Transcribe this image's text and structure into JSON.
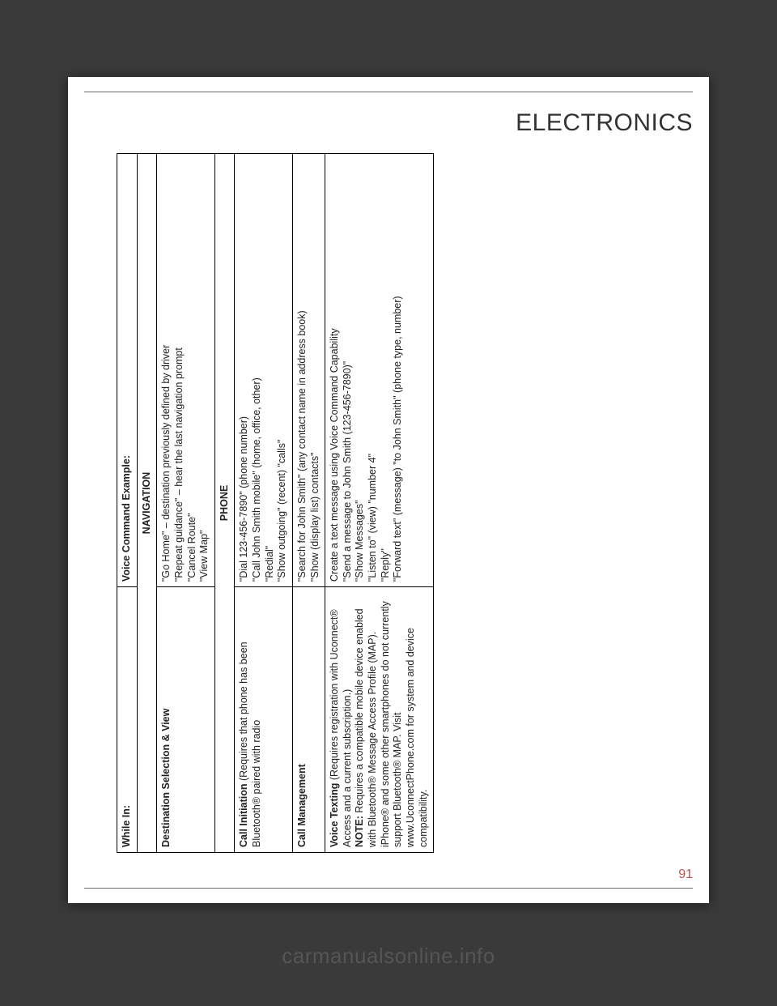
{
  "header": {
    "title": "ELECTRONICS"
  },
  "pageNumber": "91",
  "watermark": "carmanualsonline.info",
  "table": {
    "header": {
      "whileIn": "While In:",
      "example": "Voice Command Example:"
    },
    "sections": {
      "navigation": {
        "title": "NAVIGATION",
        "row": {
          "label": "Destination Selection & View",
          "lines": {
            "l1": "\"Go Home\" – destination previously defined by driver",
            "l2": "\"Repeat guidance\" – hear the last navigation prompt",
            "l3": "\"Cancel Route\"",
            "l4": "\"View Map\""
          }
        }
      },
      "phone": {
        "title": "PHONE",
        "callInitLabelBold": "Call Initiation",
        "callInitLabelRest": " (Requires that phone has been Bluetooth® paired with radio",
        "callInit": {
          "l1": "\"Dial 123-456-7890\" (phone number)",
          "l2": "\"Call John Smith mobile\" (home, office, other)",
          "l3": "\"Redial\"",
          "l4": "\"Show outgoing\" (recent) \"calls\""
        },
        "callMgmtLabel": "Call Management",
        "callMgmt": {
          "l1": "\"Search for John Smith\" (any contact name in address book)",
          "l2": "\"Show (display list) contacts\""
        },
        "voiceTextLabelBold": "Voice Texting",
        "voiceTextLabelRest": " (Requires registration with Uconnect® Access and a current subscription.)",
        "voiceTextNoteBold": "NOTE:",
        "voiceTextNoteRest": " Requires a compatible mobile device enabled with Bluetooth® Message Access Profile (MAP). iPhone® and some other smartphones do not currently support Bluetooth® MAP. Visit www.UconnectPhone.com for system and device compatibility.",
        "voiceText": {
          "l1": "Create a text message using Voice Command Capability",
          "l2": "\"Send a message to John Smith (123-456-7890)\"",
          "l3": "\"Show Messages\"",
          "l4": "\"Listen to\" (view) \"number 4\"",
          "l5": "\"Reply\"",
          "l6": "\"Forward text\" (message) \"to John Smith\" (phone type, number)"
        }
      }
    }
  }
}
